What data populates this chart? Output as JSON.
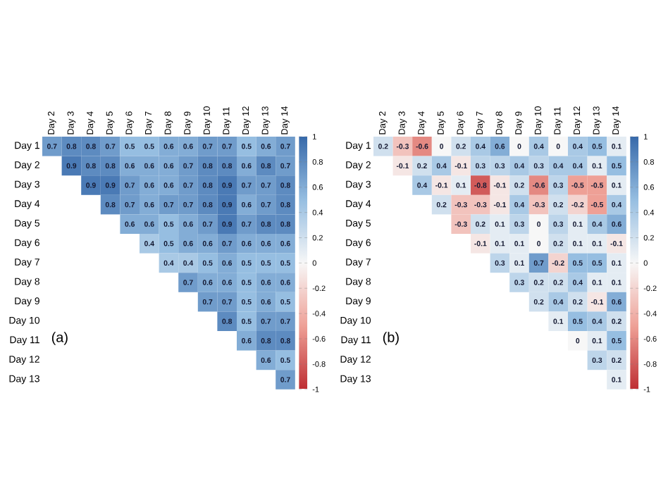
{
  "chart_data": [
    {
      "type": "heatmap",
      "data_labels": true,
      "annotations": [
        "(a)"
      ],
      "categories": [
        "Day 2",
        "Day 3",
        "Day 4",
        "Day 5",
        "Day 6",
        "Day 7",
        "Day 8",
        "Day 9",
        "Day 10",
        "Day 11",
        "Day 12",
        "Day 13",
        "Day 14"
      ],
      "y_categories": [
        "Day 1",
        "Day 2",
        "Day 3",
        "Day 4",
        "Day 5",
        "Day 6",
        "Day 7",
        "Day 8",
        "Day 9",
        "Day 10",
        "Day 11",
        "Day 12",
        "Day 13"
      ],
      "cells": [
        [
          0.7,
          0.8,
          0.8,
          0.7,
          0.5,
          0.5,
          0.6,
          0.6,
          0.7,
          0.7,
          0.5,
          0.6,
          0.7
        ],
        [
          null,
          0.9,
          0.8,
          0.8,
          0.6,
          0.6,
          0.6,
          0.7,
          0.8,
          0.8,
          0.6,
          0.8,
          0.7
        ],
        [
          null,
          null,
          0.9,
          0.9,
          0.7,
          0.6,
          0.6,
          0.7,
          0.8,
          0.9,
          0.7,
          0.7,
          0.8
        ],
        [
          null,
          null,
          null,
          0.8,
          0.7,
          0.6,
          0.7,
          0.7,
          0.8,
          0.9,
          0.6,
          0.7,
          0.8
        ],
        [
          null,
          null,
          null,
          null,
          0.6,
          0.6,
          0.5,
          0.6,
          0.7,
          0.9,
          0.7,
          0.8,
          0.8
        ],
        [
          null,
          null,
          null,
          null,
          null,
          0.4,
          0.5,
          0.6,
          0.6,
          0.7,
          0.6,
          0.6,
          0.6
        ],
        [
          null,
          null,
          null,
          null,
          null,
          null,
          0.4,
          0.4,
          0.5,
          0.6,
          0.5,
          0.5,
          0.5
        ],
        [
          null,
          null,
          null,
          null,
          null,
          null,
          null,
          0.7,
          0.6,
          0.6,
          0.5,
          0.6,
          0.6
        ],
        [
          null,
          null,
          null,
          null,
          null,
          null,
          null,
          null,
          0.7,
          0.7,
          0.5,
          0.6,
          0.5
        ],
        [
          null,
          null,
          null,
          null,
          null,
          null,
          null,
          null,
          null,
          0.8,
          0.5,
          0.7,
          0.7
        ],
        [
          null,
          null,
          null,
          null,
          null,
          null,
          null,
          null,
          null,
          null,
          0.6,
          0.8,
          0.8
        ],
        [
          null,
          null,
          null,
          null,
          null,
          null,
          null,
          null,
          null,
          null,
          null,
          0.6,
          0.5
        ],
        [
          null,
          null,
          null,
          null,
          null,
          null,
          null,
          null,
          null,
          null,
          null,
          null,
          0.7
        ]
      ],
      "clim": [
        -1,
        1
      ],
      "cticks": [
        -1,
        -0.8,
        -0.6,
        -0.4,
        -0.2,
        0,
        0.2,
        0.4,
        0.6,
        0.8,
        1
      ]
    },
    {
      "type": "heatmap",
      "data_labels": true,
      "annotations": [
        "(b)"
      ],
      "categories": [
        "Day 2",
        "Day 3",
        "Day 4",
        "Day 5",
        "Day 6",
        "Day 7",
        "Day 8",
        "Day 9",
        "Day 10",
        "Day 11",
        "Day 12",
        "Day 13",
        "Day 14"
      ],
      "y_categories": [
        "Day 1",
        "Day 2",
        "Day 3",
        "Day 4",
        "Day 5",
        "Day 6",
        "Day 7",
        "Day 8",
        "Day 9",
        "Day 10",
        "Day 11",
        "Day 12",
        "Day 13"
      ],
      "cells": [
        [
          0.2,
          -0.3,
          -0.6,
          0,
          0.2,
          0.4,
          0.6,
          0,
          0.4,
          0,
          0.4,
          0.5,
          0.1
        ],
        [
          null,
          -0.1,
          0.2,
          0.4,
          -0.1,
          0.3,
          0.3,
          0.4,
          0.3,
          0.4,
          0.4,
          0.1,
          0.5
        ],
        [
          null,
          null,
          0.4,
          -0.1,
          0.1,
          -0.8,
          -0.1,
          0.2,
          -0.6,
          0.3,
          -0.5,
          -0.5,
          0.1
        ],
        [
          null,
          null,
          null,
          0.2,
          -0.3,
          -0.3,
          -0.1,
          0.4,
          -0.3,
          0.2,
          -0.2,
          -0.5,
          0.4
        ],
        [
          null,
          null,
          null,
          null,
          -0.3,
          0.2,
          0.1,
          0.3,
          0,
          0.3,
          0.1,
          0.4,
          0.6
        ],
        [
          null,
          null,
          null,
          null,
          null,
          -0.1,
          0.1,
          0.1,
          0,
          0.2,
          0.1,
          0.1,
          -0.1
        ],
        [
          null,
          null,
          null,
          null,
          null,
          null,
          0.3,
          0.1,
          0.7,
          -0.2,
          0.5,
          0.5,
          0.1
        ],
        [
          null,
          null,
          null,
          null,
          null,
          null,
          null,
          0.3,
          0.2,
          0.2,
          0.4,
          0.1,
          0.1
        ],
        [
          null,
          null,
          null,
          null,
          null,
          null,
          null,
          null,
          0.2,
          0.4,
          0.2,
          -0.1,
          0.6
        ],
        [
          null,
          null,
          null,
          null,
          null,
          null,
          null,
          null,
          null,
          0.1,
          0.5,
          0.4,
          0.2
        ],
        [
          null,
          null,
          null,
          null,
          null,
          null,
          null,
          null,
          null,
          null,
          0,
          0.1,
          0.5
        ],
        [
          null,
          null,
          null,
          null,
          null,
          null,
          null,
          null,
          null,
          null,
          null,
          0.3,
          0.2
        ],
        [
          null,
          null,
          null,
          null,
          null,
          null,
          null,
          null,
          null,
          null,
          null,
          null,
          0.1
        ]
      ],
      "clim": [
        -1,
        1
      ],
      "cticks": [
        -1,
        -0.8,
        -0.6,
        -0.4,
        -0.2,
        0,
        0.2,
        0.4,
        0.6,
        0.8,
        1
      ]
    }
  ]
}
